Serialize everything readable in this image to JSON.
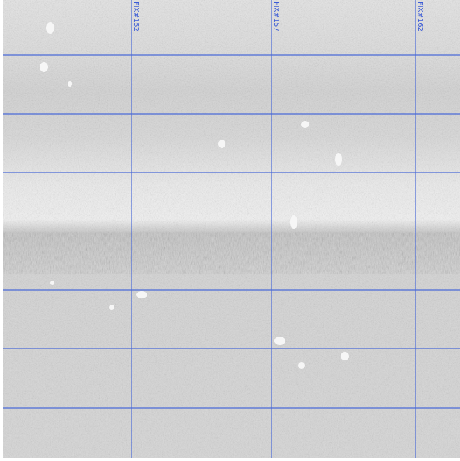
{
  "fix_labels": [
    "FIX#152",
    "FIX#157",
    "FIX#162"
  ]
}
